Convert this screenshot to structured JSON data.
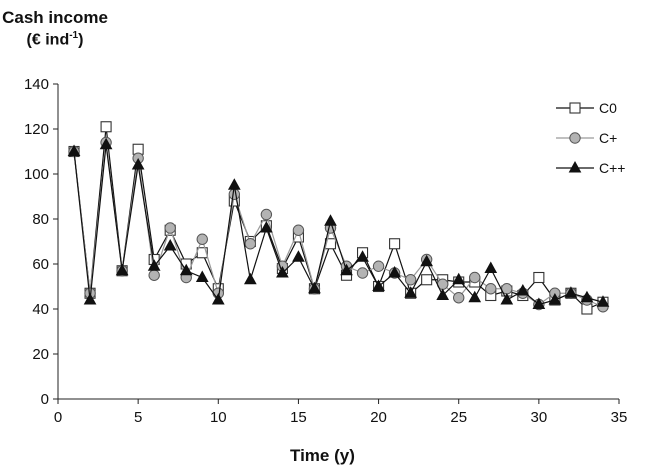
{
  "chart_data": {
    "type": "line",
    "title": "",
    "ylabel_line1": "Cash income",
    "ylabel_line2_prefix": "(€ ind",
    "ylabel_line2_sup": "-1",
    "ylabel_line2_suffix": ")",
    "xlabel": "Time (y)",
    "xlim": [
      0,
      35
    ],
    "ylim": [
      0,
      140
    ],
    "xticks": [
      0,
      5,
      10,
      15,
      20,
      25,
      30,
      35
    ],
    "yticks": [
      0,
      20,
      40,
      60,
      80,
      100,
      120,
      140
    ],
    "grid": false,
    "legend_position": "top-right",
    "x": [
      1,
      2,
      3,
      4,
      5,
      6,
      7,
      8,
      9,
      10,
      11,
      12,
      13,
      14,
      15,
      16,
      17,
      18,
      19,
      20,
      21,
      22,
      23,
      24,
      25,
      26,
      27,
      28,
      29,
      30,
      31,
      32,
      33,
      34
    ],
    "series": [
      {
        "name": "C0",
        "marker": "square",
        "line_color": "#111111",
        "marker_fill": "#ffffff",
        "marker_stroke": "#333333",
        "values": [
          110,
          47,
          121,
          57,
          111,
          62,
          75,
          60,
          65,
          49,
          88,
          70,
          77,
          58,
          72,
          49,
          69,
          55,
          65,
          50,
          69,
          47,
          53,
          53,
          52,
          52,
          46,
          48,
          46,
          54,
          44,
          47,
          40,
          43
        ]
      },
      {
        "name": "C+",
        "marker": "circle",
        "line_color": "#9a9a9a",
        "marker_fill": "#b3b3b3",
        "marker_stroke": "#555555",
        "values": [
          110,
          47,
          114,
          57,
          107,
          55,
          76,
          54,
          71,
          47,
          91,
          69,
          82,
          59,
          75,
          49,
          76,
          59,
          56,
          59,
          56,
          53,
          62,
          51,
          45,
          54,
          49,
          49,
          47,
          42,
          47,
          47,
          44,
          41
        ]
      },
      {
        "name": "C++",
        "marker": "triangle",
        "line_color": "#111111",
        "marker_fill": "#111111",
        "marker_stroke": "#111111",
        "values": [
          110,
          44,
          113,
          57,
          104,
          59,
          68,
          57,
          54,
          44,
          95,
          53,
          76,
          56,
          63,
          49,
          79,
          57,
          63,
          50,
          56,
          47,
          61,
          46,
          53,
          45,
          58,
          44,
          48,
          42,
          44,
          47,
          45,
          43
        ]
      }
    ]
  }
}
